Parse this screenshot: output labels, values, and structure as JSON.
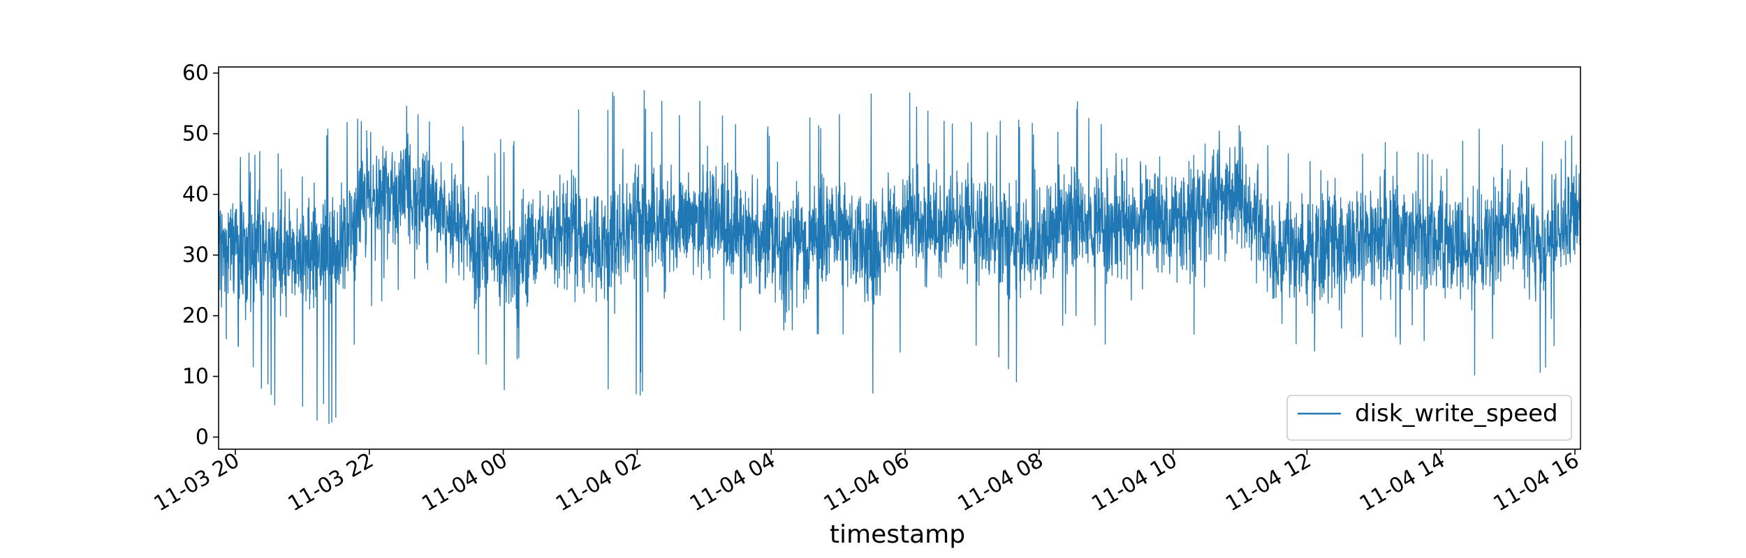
{
  "chart_data": {
    "type": "line",
    "title": "",
    "xlabel": "timestamp",
    "ylabel": "",
    "ylim": [
      -2,
      61
    ],
    "xlim": [
      "2023-11-03 19:45",
      "2023-11-04 16:05"
    ],
    "grid": false,
    "legend_position": "lower right",
    "y_ticks": [
      0,
      10,
      20,
      30,
      40,
      50,
      60
    ],
    "x_ticks": [
      {
        "at": "2023-11-03 20:00",
        "label": "11-03 20"
      },
      {
        "at": "2023-11-03 22:00",
        "label": "11-03 22"
      },
      {
        "at": "2023-11-04 00:00",
        "label": "11-04 00"
      },
      {
        "at": "2023-11-04 02:00",
        "label": "11-04 02"
      },
      {
        "at": "2023-11-04 04:00",
        "label": "11-04 04"
      },
      {
        "at": "2023-11-04 06:00",
        "label": "11-04 06"
      },
      {
        "at": "2023-11-04 08:00",
        "label": "11-04 08"
      },
      {
        "at": "2023-11-04 10:00",
        "label": "11-04 10"
      },
      {
        "at": "2023-11-04 12:00",
        "label": "11-04 12"
      },
      {
        "at": "2023-11-04 14:00",
        "label": "11-04 14"
      },
      {
        "at": "2023-11-04 16:00",
        "label": "11-04 16"
      }
    ],
    "series": [
      {
        "name": "disk_write_speed",
        "color": "#1f77b4",
        "x": [
          "2023-11-03 19:45",
          "2023-11-03 20:00",
          "2023-11-03 20:30",
          "2023-11-03 21:00",
          "2023-11-03 21:30",
          "2023-11-03 22:00",
          "2023-11-03 22:30",
          "2023-11-03 23:00",
          "2023-11-03 23:30",
          "2023-11-04 00:00",
          "2023-11-04 00:30",
          "2023-11-04 01:00",
          "2023-11-04 01:30",
          "2023-11-04 02:00",
          "2023-11-04 02:30",
          "2023-11-04 03:00",
          "2023-11-04 03:30",
          "2023-11-04 04:00",
          "2023-11-04 04:30",
          "2023-11-04 05:00",
          "2023-11-04 05:30",
          "2023-11-04 06:00",
          "2023-11-04 06:30",
          "2023-11-04 07:00",
          "2023-11-04 07:30",
          "2023-11-04 08:00",
          "2023-11-04 08:30",
          "2023-11-04 09:00",
          "2023-11-04 09:30",
          "2023-11-04 10:00",
          "2023-11-04 10:30",
          "2023-11-04 11:00",
          "2023-11-04 11:30",
          "2023-11-04 12:00",
          "2023-11-04 12:30",
          "2023-11-04 13:00",
          "2023-11-04 13:30",
          "2023-11-04 14:00",
          "2023-11-04 14:30",
          "2023-11-04 15:00",
          "2023-11-04 15:30",
          "2023-11-04 16:00",
          "2023-11-04 16:05"
        ],
        "mean": [
          33,
          32,
          31,
          30,
          30,
          38,
          41,
          38,
          33,
          29,
          31,
          35,
          30,
          37,
          34,
          36,
          34,
          32,
          33,
          35,
          31,
          36,
          34,
          36,
          33,
          31,
          37,
          34,
          36,
          35,
          38,
          41,
          31,
          30,
          32,
          33,
          33,
          33,
          30,
          36,
          31,
          37,
          37
        ],
        "low": [
          10,
          15,
          5,
          2,
          2,
          20,
          25,
          20,
          15,
          5,
          15,
          10,
          8,
          6,
          15,
          20,
          15,
          15,
          18,
          15,
          5,
          15,
          10,
          15,
          10,
          7,
          20,
          15,
          15,
          3,
          25,
          30,
          18,
          10,
          15,
          15,
          15,
          15,
          10,
          15,
          10,
          20,
          16
        ],
        "high": [
          47,
          46,
          48,
          48,
          54,
          54,
          55,
          54,
          52,
          50,
          52,
          53,
          57,
          58,
          55,
          56,
          54,
          53,
          55,
          54,
          57,
          57,
          56,
          55,
          53,
          52,
          56,
          55,
          56,
          56,
          54,
          53,
          48,
          47,
          49,
          50,
          51,
          50,
          52,
          56,
          52,
          53,
          50
        ]
      }
    ]
  }
}
